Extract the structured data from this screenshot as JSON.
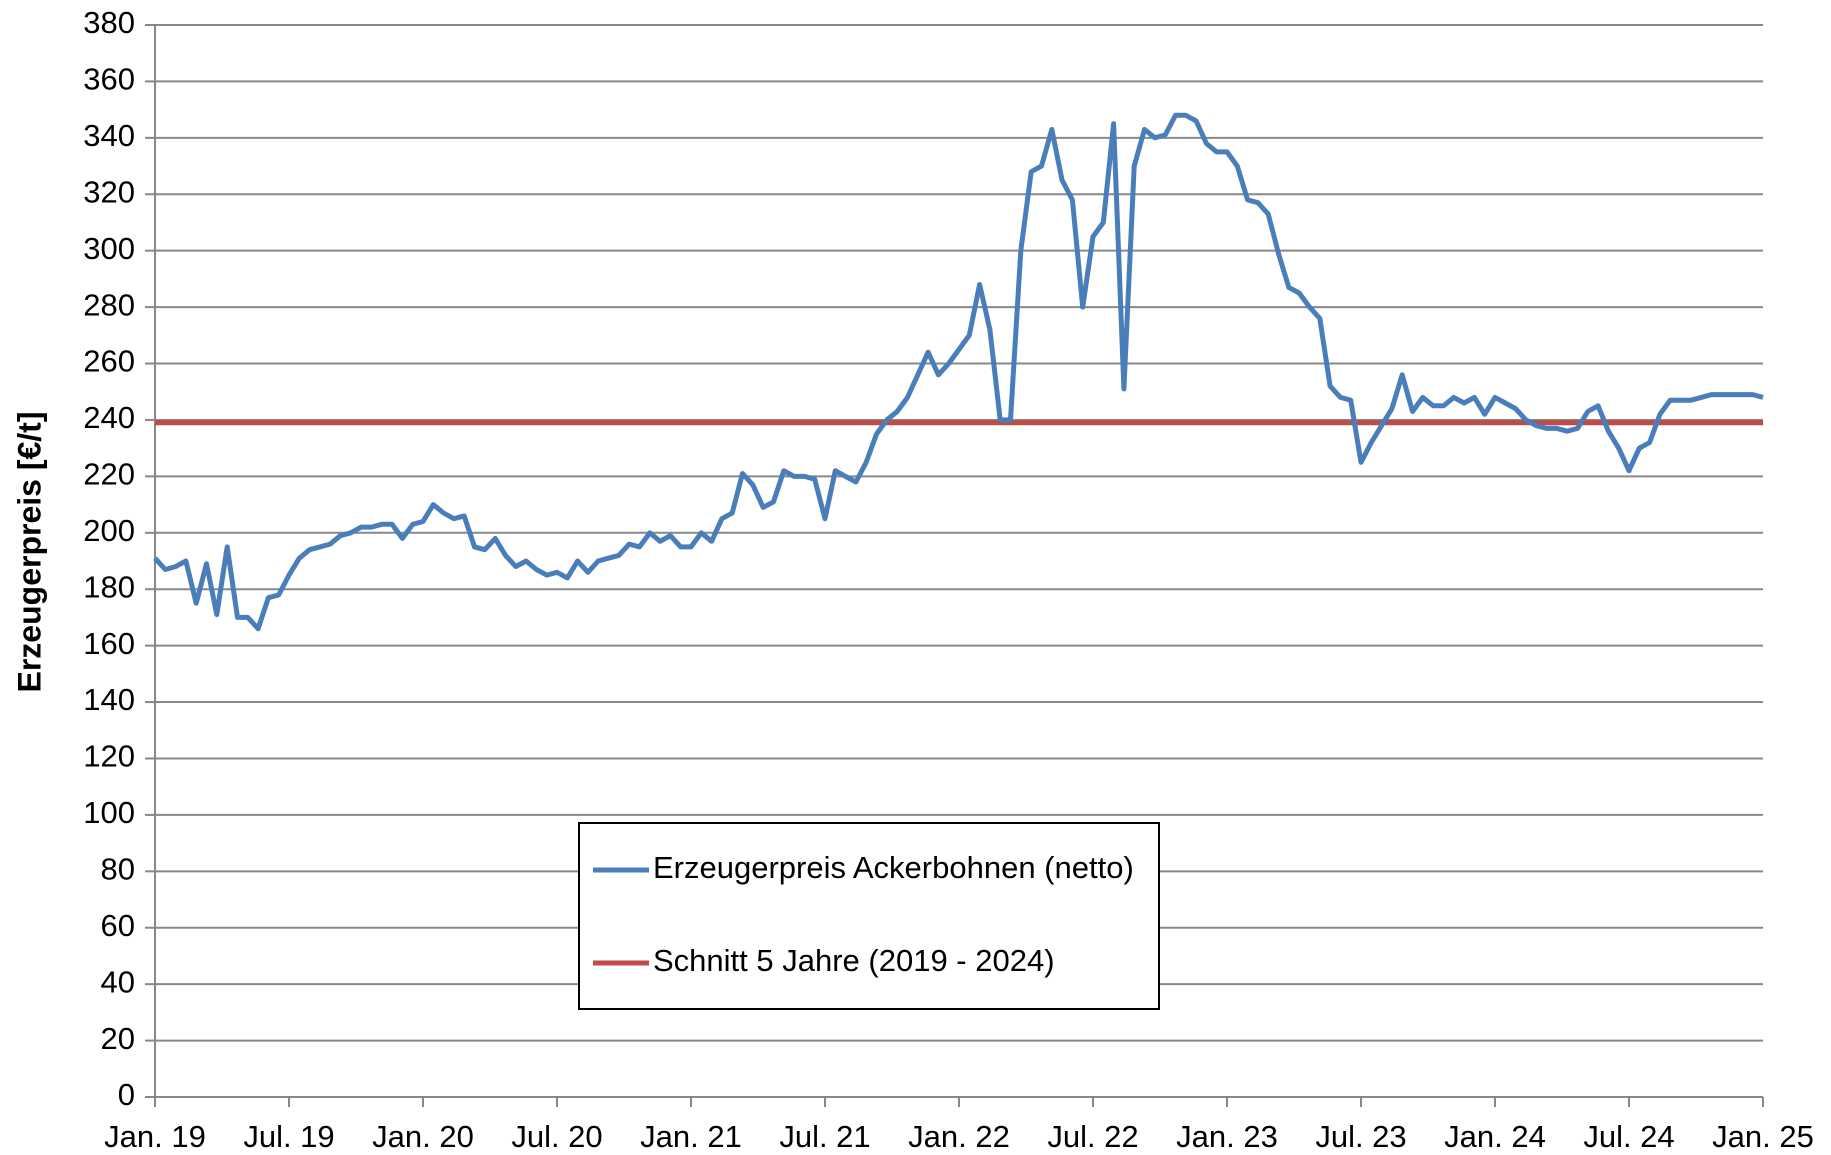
{
  "chart_data": {
    "type": "line",
    "ylabel": "Erzeugerpreis [€/t]",
    "categories": [
      "Jan. 19",
      null,
      null,
      null,
      null,
      null,
      null,
      null,
      null,
      null,
      null,
      null,
      null,
      "Jul. 19",
      null,
      null,
      null,
      null,
      null,
      null,
      null,
      null,
      null,
      null,
      null,
      null,
      "Jan. 20",
      null,
      null,
      null,
      null,
      null,
      null,
      null,
      null,
      null,
      null,
      null,
      null,
      "Jul. 20",
      null,
      null,
      null,
      null,
      null,
      null,
      null,
      null,
      null,
      null,
      null,
      null,
      "Jan. 21",
      null,
      null,
      null,
      null,
      null,
      null,
      null,
      null,
      null,
      null,
      null,
      null,
      "Jul. 21",
      null,
      null,
      null,
      null,
      null,
      null,
      null,
      null,
      null,
      null,
      null,
      null,
      "Jan. 22",
      null,
      null,
      null,
      null,
      null,
      null,
      null,
      null,
      null,
      null,
      null,
      null,
      "Jul. 22",
      null,
      null,
      null,
      null,
      null,
      null,
      null,
      null,
      null,
      null,
      null,
      null,
      "Jan. 23",
      null,
      null,
      null,
      null,
      null,
      null,
      null,
      null,
      null,
      null,
      null,
      null,
      "Jul. 23",
      null,
      null,
      null,
      null,
      null,
      null,
      null,
      null,
      null,
      null,
      null,
      null,
      "Jan. 24",
      null,
      null,
      null,
      null,
      null,
      null,
      null,
      null,
      null,
      null,
      null,
      null,
      "Jul. 24",
      null,
      null,
      null,
      null,
      null,
      null,
      null,
      null,
      null,
      null,
      null,
      null,
      "Jan. 25"
    ],
    "series": [
      {
        "name": "Erzeugerpreis Ackerbohnen (netto)",
        "color": "#4a7ebb",
        "values": [
          191,
          187,
          188,
          190,
          175,
          189,
          171,
          195,
          170,
          170,
          166,
          177,
          178,
          185,
          191,
          194,
          195,
          196,
          199,
          200,
          202,
          202,
          203,
          203,
          198,
          203,
          204,
          210,
          207,
          205,
          206,
          195,
          194,
          198,
          192,
          188,
          190,
          187,
          185,
          186,
          184,
          190,
          186,
          190,
          191,
          192,
          196,
          195,
          200,
          197,
          199,
          195,
          195,
          200,
          197,
          205,
          207,
          221,
          217,
          209,
          211,
          222,
          220,
          220,
          219,
          205,
          222,
          220,
          218,
          225,
          235,
          240,
          243,
          248,
          256,
          264,
          256,
          260,
          265,
          270,
          288,
          272,
          240,
          240,
          300,
          328,
          330,
          343,
          325,
          318,
          280,
          305,
          310,
          345,
          251,
          330,
          343,
          340,
          341,
          348,
          348,
          346,
          338,
          335,
          335,
          330,
          318,
          317,
          313,
          299,
          287,
          285,
          280,
          276,
          252,
          248,
          247,
          225,
          232,
          238,
          244,
          256,
          243,
          248,
          245,
          245,
          248,
          246,
          248,
          242,
          248,
          246,
          244,
          240,
          238,
          237,
          237,
          236,
          237,
          243,
          245,
          236,
          230,
          222,
          230,
          232,
          242,
          247,
          247,
          247,
          248,
          249,
          249,
          249,
          249,
          249,
          248
        ]
      },
      {
        "name": "Schnitt 5 Jahre (2019 - 2024)",
        "color": "#be4b48",
        "values": [
          239,
          239,
          239,
          239,
          239,
          239,
          239,
          239,
          239,
          239,
          239,
          239,
          239,
          239,
          239,
          239,
          239,
          239,
          239,
          239,
          239,
          239,
          239,
          239,
          239,
          239,
          239,
          239,
          239,
          239,
          239,
          239,
          239,
          239,
          239,
          239,
          239,
          239,
          239,
          239,
          239,
          239,
          239,
          239,
          239,
          239,
          239,
          239,
          239,
          239,
          239,
          239,
          239,
          239,
          239,
          239,
          239,
          239,
          239,
          239,
          239,
          239,
          239,
          239,
          239,
          239,
          239,
          239,
          239,
          239,
          239,
          239,
          239,
          239,
          239,
          239,
          239,
          239,
          239,
          239,
          239,
          239,
          239,
          239,
          239,
          239,
          239,
          239,
          239,
          239,
          239,
          239,
          239,
          239,
          239,
          239,
          239,
          239,
          239,
          239,
          239,
          239,
          239,
          239,
          239,
          239,
          239,
          239,
          239,
          239,
          239,
          239,
          239,
          239,
          239,
          239,
          239,
          239,
          239,
          239,
          239,
          239,
          239,
          239,
          239,
          239,
          239,
          239,
          239,
          239,
          239,
          239,
          239,
          239,
          239,
          239,
          239,
          239,
          239,
          239,
          239,
          239,
          239,
          239,
          239,
          239,
          239,
          239,
          239,
          239,
          239,
          239,
          239,
          239,
          239,
          239,
          239
        ]
      }
    ],
    "ylim": [
      0,
      380
    ],
    "yticks": [
      0,
      20,
      40,
      60,
      80,
      100,
      120,
      140,
      160,
      180,
      200,
      220,
      240,
      260,
      280,
      300,
      320,
      340,
      360,
      380
    ],
    "grid": true,
    "legend": "bottom-center"
  }
}
